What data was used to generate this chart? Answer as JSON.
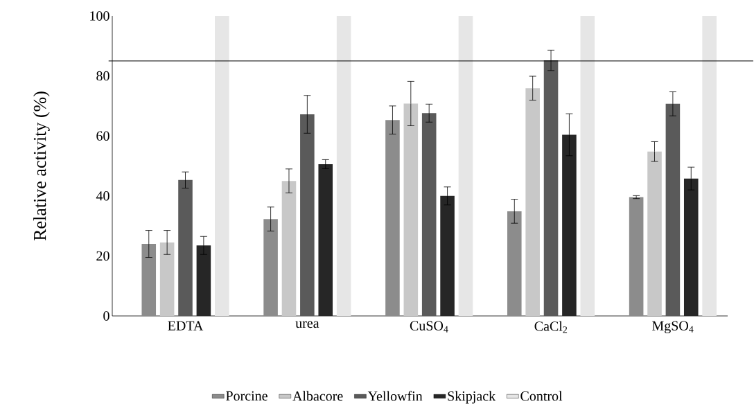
{
  "chart_data": {
    "type": "bar",
    "ylabel": "Relative activity (%)",
    "categories": [
      "EDTA",
      "urea",
      "CuSO$_{4}$",
      "CaCl$_{2}$",
      "MgSO$_{4}$"
    ],
    "series": [
      {
        "name": "Porcine",
        "color": "#8c8c8c",
        "values": [
          24,
          32.3,
          65.3,
          34.9,
          39.6
        ],
        "errors": [
          4.5,
          4,
          4.7,
          4,
          0.5
        ]
      },
      {
        "name": "Albacore",
        "color": "#c8c8c8",
        "values": [
          24.5,
          45,
          70.8,
          75.9,
          54.8
        ],
        "errors": [
          4,
          4,
          7.4,
          4,
          3.3
        ]
      },
      {
        "name": "Yellowfin",
        "color": "#5a5a5a",
        "values": [
          45.3,
          67.2,
          67.6,
          85.2,
          70.7
        ],
        "errors": [
          2.7,
          6.3,
          3,
          3.4,
          4
        ]
      },
      {
        "name": "Skipjack",
        "color": "#262626",
        "values": [
          23.5,
          50.6,
          40,
          60.4,
          45.8
        ],
        "errors": [
          3,
          1.5,
          3,
          7,
          3.8
        ]
      },
      {
        "name": "Control",
        "color": "#e6e6e6",
        "values": [
          100,
          100,
          100,
          100,
          100
        ]
      }
    ],
    "ylim": [
      0,
      100
    ],
    "yticks": [
      0,
      20,
      40,
      60,
      80,
      100
    ],
    "ref_lines": [
      {
        "axis": "y",
        "value": 85,
        "color": "#000000"
      }
    ],
    "legend": "bottom",
    "grid": false
  }
}
